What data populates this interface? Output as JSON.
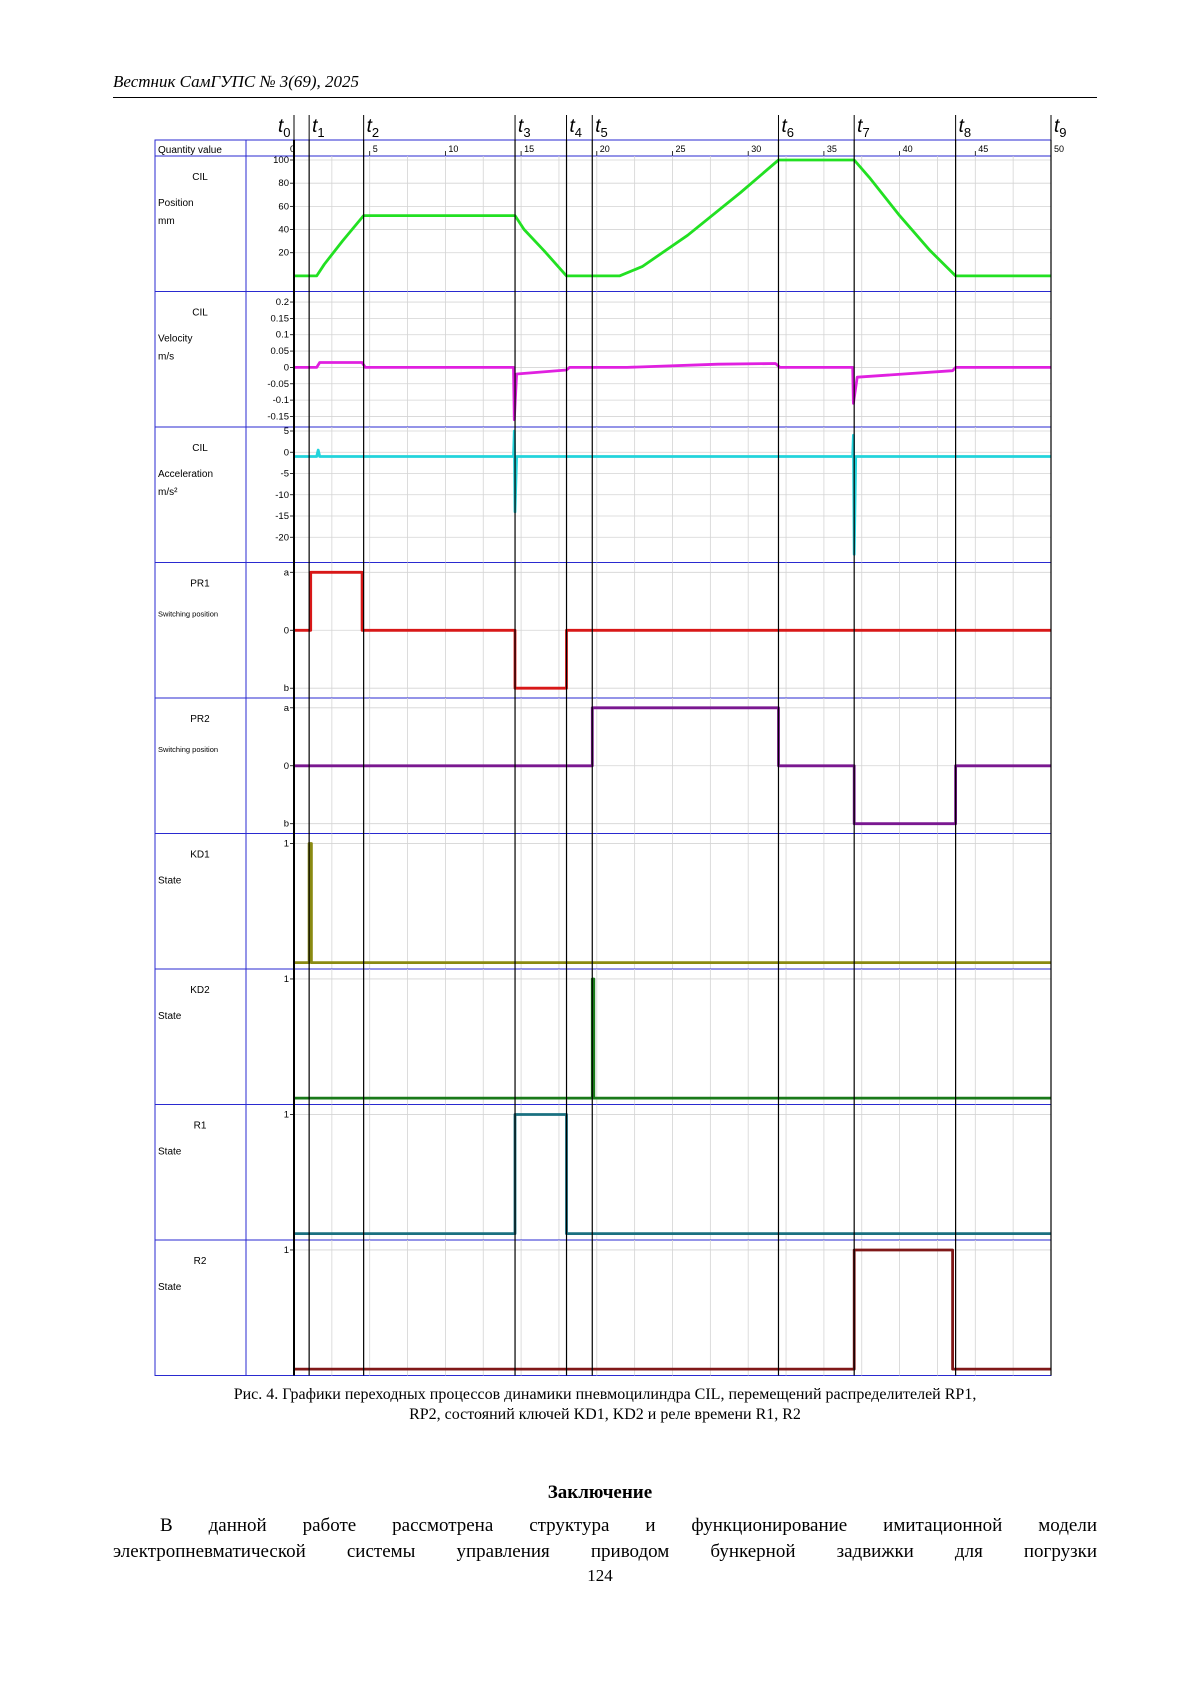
{
  "header": {
    "journal": "Вестник СамГУПС № 3(69), 2025"
  },
  "figure": {
    "caption_line1": "Рис. 4. Графики переходных процессов динамики пневмоцилиндра CIL, перемещений распределителей RP1,",
    "caption_line2": "RP2, состояний ключей KD1, KD2 и реле времени R1, R2"
  },
  "chart_data": {
    "type": "line",
    "axis_header": "Quantity value",
    "x_ticks": [
      0,
      5,
      10,
      15,
      20,
      25,
      30,
      35,
      40,
      45,
      50
    ],
    "xlim": [
      0,
      50
    ],
    "time_markers": [
      {
        "label": "t",
        "sub": "0",
        "t": 0
      },
      {
        "label": "t",
        "sub": "1",
        "t": 1
      },
      {
        "label": "t",
        "sub": "2",
        "t": 4.6
      },
      {
        "label": "t",
        "sub": "3",
        "t": 14.6
      },
      {
        "label": "t",
        "sub": "4",
        "t": 18
      },
      {
        "label": "t",
        "sub": "5",
        "t": 19.7
      },
      {
        "label": "t",
        "sub": "6",
        "t": 32
      },
      {
        "label": "t",
        "sub": "7",
        "t": 37
      },
      {
        "label": "t",
        "sub": "8",
        "t": 43.7
      },
      {
        "label": "t",
        "sub": "9",
        "t": 50
      }
    ],
    "panels": [
      {
        "id": "cil-position",
        "name": "CIL",
        "quantity": "Position",
        "unit": "mm",
        "color": "#22e022",
        "ylim": [
          -10,
          100
        ],
        "y_ticks": [
          {
            "v": 100,
            "l": "100"
          },
          {
            "v": 80,
            "l": "80"
          },
          {
            "v": 60,
            "l": "60"
          },
          {
            "v": 40,
            "l": "40"
          },
          {
            "v": 20,
            "l": "20"
          }
        ],
        "points": [
          [
            0,
            0
          ],
          [
            1.5,
            0
          ],
          [
            2,
            10
          ],
          [
            3.2,
            30
          ],
          [
            4.6,
            52
          ],
          [
            14.6,
            52
          ],
          [
            15.2,
            40
          ],
          [
            16.5,
            22
          ],
          [
            18,
            0
          ],
          [
            21.5,
            0
          ],
          [
            23,
            8
          ],
          [
            26,
            35
          ],
          [
            29.5,
            72
          ],
          [
            32,
            100
          ],
          [
            37,
            100
          ],
          [
            38,
            85
          ],
          [
            40,
            52
          ],
          [
            42,
            22
          ],
          [
            43.7,
            0
          ],
          [
            50,
            0
          ]
        ]
      },
      {
        "id": "cil-velocity",
        "name": "CIL",
        "quantity": "Velocity",
        "unit": "m/s",
        "color": "#e020e0",
        "ylim": [
          -0.17,
          0.22
        ],
        "y_ticks": [
          {
            "v": 0.2,
            "l": "0.2"
          },
          {
            "v": 0.15,
            "l": "0.15"
          },
          {
            "v": 0.1,
            "l": "0.1"
          },
          {
            "v": 0.05,
            "l": "0.05"
          },
          {
            "v": 0.0,
            "l": "0"
          },
          {
            "v": -0.05,
            "l": "-0.05"
          },
          {
            "v": -0.1,
            "l": "-0.1"
          },
          {
            "v": -0.15,
            "l": "-0.15"
          }
        ],
        "points": [
          [
            0,
            0
          ],
          [
            1.5,
            0
          ],
          [
            1.7,
            0.015
          ],
          [
            4.5,
            0.015
          ],
          [
            4.7,
            0
          ],
          [
            14.5,
            0
          ],
          [
            14.55,
            -0.16
          ],
          [
            14.7,
            -0.02
          ],
          [
            18,
            -0.008
          ],
          [
            18.2,
            0
          ],
          [
            22,
            0
          ],
          [
            28,
            0.01
          ],
          [
            31.8,
            0.012
          ],
          [
            32.1,
            0
          ],
          [
            36.9,
            0
          ],
          [
            36.95,
            -0.11
          ],
          [
            37.2,
            -0.03
          ],
          [
            43.5,
            -0.01
          ],
          [
            43.7,
            0
          ],
          [
            50,
            0
          ]
        ]
      },
      {
        "id": "cil-acceleration",
        "name": "CIL",
        "quantity": "Acceleration",
        "unit": "m/s²",
        "color": "#22d4dc",
        "ylim": [
          -25,
          5
        ],
        "y_ticks": [
          {
            "v": 5,
            "l": "5"
          },
          {
            "v": 0,
            "l": "0"
          },
          {
            "v": -5,
            "l": "-5"
          },
          {
            "v": -10,
            "l": "-10"
          },
          {
            "v": -15,
            "l": "-15"
          },
          {
            "v": -20,
            "l": "-20"
          }
        ],
        "points": [
          [
            0,
            -1
          ],
          [
            1.5,
            -1
          ],
          [
            1.6,
            0.5
          ],
          [
            1.7,
            -1
          ],
          [
            14.5,
            -1
          ],
          [
            14.55,
            5
          ],
          [
            14.6,
            -14
          ],
          [
            14.7,
            -1
          ],
          [
            36.9,
            -1
          ],
          [
            36.95,
            4
          ],
          [
            37,
            -24
          ],
          [
            37.1,
            -1
          ],
          [
            50,
            -1
          ]
        ]
      },
      {
        "id": "pr1",
        "name": "PR1",
        "quantity": "Switching position",
        "unit": "",
        "color": "#d81818",
        "ylim": [
          -1.1,
          1.1
        ],
        "y_ticks": [
          {
            "v": 1,
            "l": "a"
          },
          {
            "v": 0,
            "l": "0"
          },
          {
            "v": -1,
            "l": "b"
          }
        ],
        "points": [
          [
            0,
            0
          ],
          [
            1.1,
            0
          ],
          [
            1.1,
            1
          ],
          [
            4.5,
            1
          ],
          [
            4.5,
            0
          ],
          [
            14.6,
            0
          ],
          [
            14.6,
            -1
          ],
          [
            18,
            -1
          ],
          [
            18,
            0
          ],
          [
            50,
            0
          ]
        ]
      },
      {
        "id": "pr2",
        "name": "PR2",
        "quantity": "Switching position",
        "unit": "",
        "color": "#7a1890",
        "ylim": [
          -1.1,
          1.1
        ],
        "y_ticks": [
          {
            "v": 1,
            "l": "a"
          },
          {
            "v": 0,
            "l": "0"
          },
          {
            "v": -1,
            "l": "b"
          }
        ],
        "points": [
          [
            0,
            0
          ],
          [
            19.7,
            0
          ],
          [
            19.7,
            1
          ],
          [
            32,
            1
          ],
          [
            32,
            0
          ],
          [
            37,
            0
          ],
          [
            37,
            -1
          ],
          [
            43.7,
            -1
          ],
          [
            43.7,
            0
          ],
          [
            50,
            0
          ]
        ]
      },
      {
        "id": "kd1",
        "name": "KD1",
        "quantity": "State",
        "unit": "",
        "color": "#8a8a12",
        "ylim": [
          -0.02,
          1.05
        ],
        "y_ticks": [
          {
            "v": 1,
            "l": "1"
          }
        ],
        "points": [
          [
            0,
            0
          ],
          [
            1,
            0
          ],
          [
            1,
            1
          ],
          [
            1.15,
            1
          ],
          [
            1.15,
            0
          ],
          [
            50,
            0
          ]
        ]
      },
      {
        "id": "kd2",
        "name": "KD2",
        "quantity": "State",
        "unit": "",
        "color": "#1a7a1a",
        "ylim": [
          -0.02,
          1.05
        ],
        "y_ticks": [
          {
            "v": 1,
            "l": "1"
          }
        ],
        "points": [
          [
            0,
            0
          ],
          [
            19.7,
            0
          ],
          [
            19.7,
            1
          ],
          [
            19.8,
            1
          ],
          [
            19.8,
            0
          ],
          [
            50,
            0
          ]
        ]
      },
      {
        "id": "r1",
        "name": "R1",
        "quantity": "State",
        "unit": "",
        "color": "#1a7080",
        "ylim": [
          -0.02,
          1.05
        ],
        "y_ticks": [
          {
            "v": 1,
            "l": "1"
          }
        ],
        "points": [
          [
            0,
            0
          ],
          [
            14.6,
            0
          ],
          [
            14.6,
            1
          ],
          [
            18,
            1
          ],
          [
            18,
            0
          ],
          [
            50,
            0
          ]
        ]
      },
      {
        "id": "r2",
        "name": "R2",
        "quantity": "State",
        "unit": "",
        "color": "#801818",
        "ylim": [
          -0.02,
          1.05
        ],
        "y_ticks": [
          {
            "v": 1,
            "l": "1"
          }
        ],
        "points": [
          [
            0,
            0
          ],
          [
            37,
            0
          ],
          [
            37,
            1
          ],
          [
            43.5,
            1
          ],
          [
            43.5,
            0
          ],
          [
            50,
            0
          ]
        ]
      }
    ]
  },
  "section": {
    "title": "Заключение",
    "line1": "В данной работе рассмотрена структура и функционирование имитационной модели",
    "line2": "электропневматической системы управления приводом бункерной задвижки для погрузки"
  },
  "page_number": "124"
}
